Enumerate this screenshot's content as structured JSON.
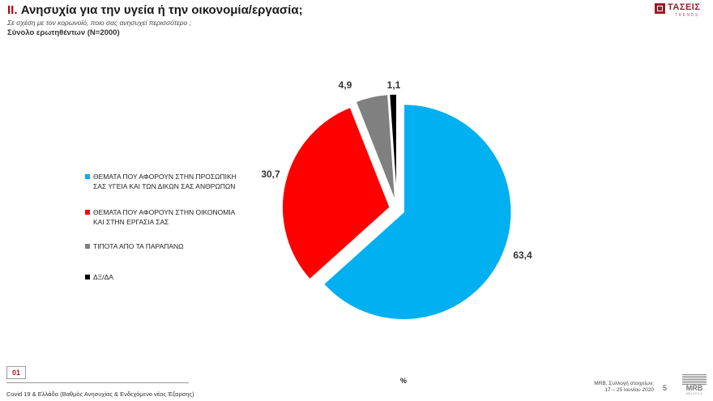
{
  "header": {
    "title_number": "II.",
    "title_text": "Ανησυχία για την υγεία ή την οικονομία/εργασία;",
    "subtitle": "Σε σχέση με τον κορωνοϊό, ποιο σας ανησυχεί περισσότερο ;",
    "sample": "Σύνολο ερωτηθέντων (N=2000)"
  },
  "logo_top": {
    "word": "ΤΑΣΕΙΣ",
    "sub": "TRENDS"
  },
  "chart_data": {
    "type": "pie",
    "categories": [
      "ΘΕΜΑΤΑ ΠΟΥ ΑΦΟΡΟΥΝ ΣΤΗΝ ΠΡΟΣΩΠΙΚΗ ΣΑΣ ΥΓΕΙΑ ΚΑΙ ΤΩΝ ΔΙΚΩΝ ΣΑΣ ΑΝΘΡΩΠΩΝ",
      "ΘΕΜΑΤΑ ΠΟΥ ΑΦΟΡΟΥΝ ΣΤΗΝ ΟΙΚΟΝΟΜΙΑ ΚΑΙ ΣΤΗΝ ΕΡΓΑΣΙΑ ΣΑΣ",
      "ΤΙΠΟΤΑ ΑΠΟ ΤΑ ΠΑΡΑΠΑΝΩ",
      "ΔΞ/ΔΑ"
    ],
    "values": [
      63.4,
      30.7,
      4.9,
      1.1
    ],
    "value_labels": [
      "63,4",
      "30,7",
      "4,9",
      "1,1"
    ],
    "colors": [
      "#00b0f0",
      "#ff0000",
      "#808080",
      "#000000"
    ],
    "exploded": true,
    "legend_position": "left",
    "unit": "%"
  },
  "footer": {
    "code": "01",
    "text": "Covid 19 & Ελλάδα (Βαθμός Ανησυχίας & Ενδεχόμενο νέας Έξαρσης)",
    "unit": "%",
    "source_line1": "MRB, Συλλογή στοιχείων:",
    "source_line2": "17 – 25 Ιουνίου 2020",
    "page": "5"
  },
  "logo_bottom": {
    "word": "MRB",
    "sub": "HELLAS S.A."
  }
}
